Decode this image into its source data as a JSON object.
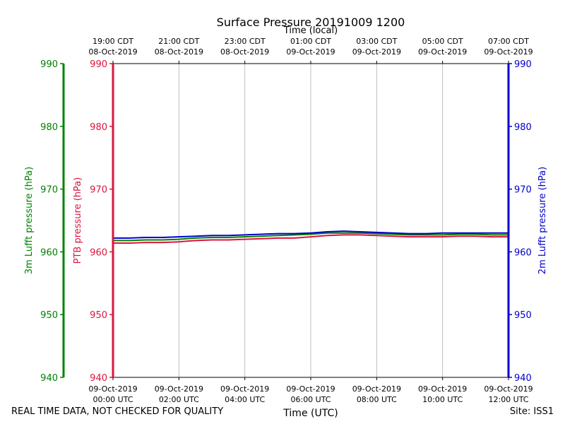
{
  "chart_data": {
    "type": "line",
    "title": "Surface Pressure 20191009 1200",
    "top_axis_label": "Time (local)",
    "xlabel": "Time (UTC)",
    "x_range_hours_utc": [
      0,
      12
    ],
    "top_ticks": [
      {
        "line1": "19:00 CDT",
        "line2": "08-Oct-2019",
        "hour_utc": 0
      },
      {
        "line1": "21:00 CDT",
        "line2": "08-Oct-2019",
        "hour_utc": 2
      },
      {
        "line1": "23:00 CDT",
        "line2": "08-Oct-2019",
        "hour_utc": 4
      },
      {
        "line1": "01:00 CDT",
        "line2": "09-Oct-2019",
        "hour_utc": 6
      },
      {
        "line1": "03:00 CDT",
        "line2": "09-Oct-2019",
        "hour_utc": 8
      },
      {
        "line1": "05:00 CDT",
        "line2": "09-Oct-2019",
        "hour_utc": 10
      },
      {
        "line1": "07:00 CDT",
        "line2": "09-Oct-2019",
        "hour_utc": 12
      }
    ],
    "bottom_ticks": [
      {
        "line1": "09-Oct-2019",
        "line2": "00:00 UTC",
        "hour_utc": 0
      },
      {
        "line1": "09-Oct-2019",
        "line2": "02:00 UTC",
        "hour_utc": 2
      },
      {
        "line1": "09-Oct-2019",
        "line2": "04:00 UTC",
        "hour_utc": 4
      },
      {
        "line1": "09-Oct-2019",
        "line2": "06:00 UTC",
        "hour_utc": 6
      },
      {
        "line1": "09-Oct-2019",
        "line2": "08:00 UTC",
        "hour_utc": 8
      },
      {
        "line1": "09-Oct-2019",
        "line2": "10:00 UTC",
        "hour_utc": 10
      },
      {
        "line1": "09-Oct-2019",
        "line2": "12:00 UTC",
        "hour_utc": 12
      }
    ],
    "ylim": [
      940,
      990
    ],
    "y_ticks": [
      "940",
      "950",
      "960",
      "970",
      "980",
      "990"
    ],
    "grid": "vertical",
    "y_axes": [
      {
        "label": "3m Lufft pressure (hPa)",
        "color": "#008000",
        "side": "far-left"
      },
      {
        "label": "PTB pressure (hPa)",
        "color": "#dc143c",
        "side": "left"
      },
      {
        "label": "2m Lufft pressure (hPa)",
        "color": "#0000cd",
        "side": "right"
      }
    ],
    "series": [
      {
        "axis": "PTB pressure (hPa)",
        "color": "#dc143c",
        "x": [
          0,
          0.5,
          1,
          1.5,
          2,
          2.5,
          3,
          3.5,
          4,
          4.5,
          5,
          5.5,
          6,
          6.5,
          7,
          7.5,
          8,
          8.5,
          9,
          9.5,
          10,
          10.5,
          11,
          11.5,
          12
        ],
        "y": [
          961.4,
          961.4,
          961.5,
          961.5,
          961.6,
          961.8,
          961.9,
          961.9,
          962.0,
          962.1,
          962.2,
          962.2,
          962.4,
          962.6,
          962.7,
          962.7,
          962.6,
          962.5,
          962.4,
          962.4,
          962.4,
          962.5,
          962.5,
          962.4,
          962.4
        ]
      },
      {
        "axis": "3m Lufft pressure (hPa)",
        "color": "#008000",
        "x": [
          0,
          0.5,
          1,
          1.5,
          2,
          2.5,
          3,
          3.5,
          4,
          4.5,
          5,
          5.5,
          6,
          6.5,
          7,
          7.5,
          8,
          8.5,
          9,
          9.5,
          10,
          10.5,
          11,
          11.5,
          12
        ],
        "y": [
          961.8,
          961.8,
          961.9,
          961.9,
          962.0,
          962.2,
          962.3,
          962.3,
          962.4,
          962.5,
          962.6,
          962.7,
          962.8,
          963.0,
          963.0,
          963.0,
          962.9,
          962.8,
          962.7,
          962.7,
          962.7,
          962.8,
          962.8,
          962.7,
          962.7
        ]
      },
      {
        "axis": "2m Lufft pressure (hPa)",
        "color": "#0000cd",
        "x": [
          0,
          0.5,
          1,
          1.5,
          2,
          2.5,
          3,
          3.5,
          4,
          4.5,
          5,
          5.5,
          6,
          6.5,
          7,
          7.5,
          8,
          8.5,
          9,
          9.5,
          10,
          10.5,
          11,
          11.5,
          12
        ],
        "y": [
          962.2,
          962.2,
          962.3,
          962.3,
          962.4,
          962.5,
          962.6,
          962.6,
          962.7,
          962.8,
          962.9,
          962.9,
          963.0,
          963.2,
          963.3,
          963.2,
          963.1,
          963.0,
          962.9,
          962.9,
          963.0,
          963.0,
          963.0,
          963.0,
          963.0
        ]
      }
    ]
  },
  "footer": {
    "left": "REAL TIME DATA, NOT CHECKED FOR QUALITY",
    "right": "Site: ISS1"
  }
}
